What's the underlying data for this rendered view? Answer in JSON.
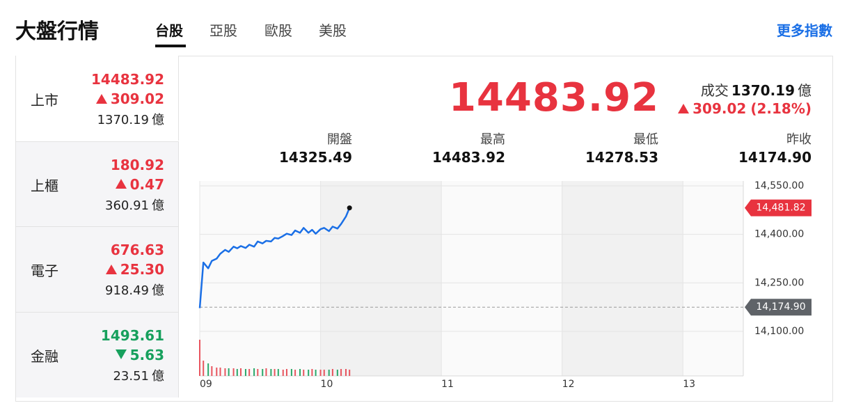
{
  "header": {
    "title": "大盤行情",
    "tabs": [
      "台股",
      "亞股",
      "歐股",
      "美股"
    ],
    "more": "更多指數"
  },
  "indices": [
    {
      "name": "上市",
      "value": "14483.92",
      "change": "309.02",
      "volume": "1370.19",
      "unit": "億",
      "direction": "up"
    },
    {
      "name": "上櫃",
      "value": "180.92",
      "change": "0.47",
      "volume": "360.91",
      "unit": "億",
      "direction": "up"
    },
    {
      "name": "電子",
      "value": "676.63",
      "change": "25.30",
      "volume": "918.49",
      "unit": "億",
      "direction": "up"
    },
    {
      "name": "金融",
      "value": "1493.61",
      "change": "5.63",
      "volume": "23.51",
      "unit": "億",
      "direction": "down"
    }
  ],
  "summary": {
    "price": "14483.92",
    "volume_label": "成交",
    "volume": "1370.19",
    "unit": "億",
    "change": "309.02",
    "change_pct": "(2.18%)",
    "direction": "up"
  },
  "stats": [
    {
      "label": "開盤",
      "value": "14325.49"
    },
    {
      "label": "最高",
      "value": "14483.92"
    },
    {
      "label": "最低",
      "value": "14278.53"
    },
    {
      "label": "昨收",
      "value": "14174.90"
    }
  ],
  "chart_data": {
    "type": "line",
    "x": [
      9.0,
      9.03,
      9.07,
      9.1,
      9.14,
      9.17,
      9.21,
      9.24,
      9.28,
      9.31,
      9.34,
      9.38,
      9.41,
      9.45,
      9.48,
      9.52,
      9.55,
      9.59,
      9.62,
      9.65,
      9.69,
      9.72,
      9.76,
      9.79,
      9.83,
      9.86,
      9.9,
      9.93,
      9.96,
      10.0,
      10.03,
      10.07,
      10.1,
      10.14,
      10.17,
      10.21,
      10.24
    ],
    "series": [
      {
        "color": "#1a6fe6",
        "values": [
          14172,
          14313,
          14295,
          14318,
          14325,
          14340,
          14352,
          14346,
          14362,
          14357,
          14364,
          14358,
          14368,
          14362,
          14378,
          14372,
          14380,
          14378,
          14389,
          14387,
          14395,
          14402,
          14398,
          14412,
          14405,
          14420,
          14405,
          14414,
          14402,
          14416,
          14420,
          14410,
          14424,
          14418,
          14432,
          14455,
          14481.82
        ]
      }
    ],
    "volumes": [
      52,
      22,
      18,
      14,
      12,
      12,
      11,
      11,
      11,
      10,
      11,
      10,
      10,
      11,
      10,
      10,
      11,
      10,
      10,
      10,
      9,
      10,
      10,
      9,
      10,
      9,
      9,
      10,
      9,
      9,
      9,
      9,
      10,
      9,
      10,
      10,
      9
    ],
    "xlim": [
      9,
      13.5
    ],
    "xticks": [
      {
        "value": 9,
        "label": "09"
      },
      {
        "value": 10,
        "label": "10"
      },
      {
        "value": 11,
        "label": "11"
      },
      {
        "value": 12,
        "label": "12"
      },
      {
        "value": 13,
        "label": "13"
      }
    ],
    "ylim": [
      14085,
      14565
    ],
    "yticks": [
      {
        "value": 14550,
        "label": "14,550.00"
      },
      {
        "value": 14400,
        "label": "14,400.00"
      },
      {
        "value": 14250,
        "label": "14,250.00"
      },
      {
        "value": 14100,
        "label": "14,100.00"
      }
    ],
    "reference": {
      "value": 14174.9,
      "label": "14,174.90"
    },
    "last": {
      "value": 14481.82,
      "label": "14,481.82"
    },
    "grid": true
  }
}
